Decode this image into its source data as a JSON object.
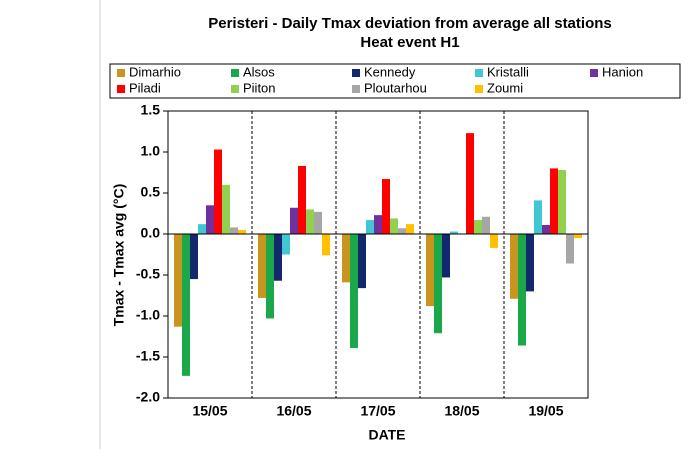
{
  "chart_data": {
    "type": "bar",
    "title": "Peristeri - Daily Tmax deviation from average all stations",
    "subtitle": "Heat event H1",
    "x_label": "DATE",
    "y_label": "Tmax - Tmax avg (°C)",
    "categories": [
      "15/05",
      "16/05",
      "17/05",
      "18/05",
      "19/05"
    ],
    "series": [
      {
        "name": "Dimarhio",
        "color": "#c8961e",
        "values": [
          -1.13,
          -0.78,
          -0.59,
          -0.88,
          -0.79
        ]
      },
      {
        "name": "Alsos",
        "color": "#1aa84a",
        "values": [
          -1.73,
          -1.03,
          -1.39,
          -1.21,
          -1.36
        ]
      },
      {
        "name": "Kennedy",
        "color": "#14286e",
        "values": [
          -0.55,
          -0.57,
          -0.66,
          -0.53,
          -0.7
        ]
      },
      {
        "name": "Kristalli",
        "color": "#3fc8d2",
        "values": [
          0.12,
          -0.25,
          0.17,
          0.03,
          0.41
        ]
      },
      {
        "name": "Hanion",
        "color": "#7030a0",
        "values": [
          0.35,
          0.32,
          0.23,
          0,
          0.11
        ]
      },
      {
        "name": "Piladi",
        "color": "#ff0000",
        "values": [
          1.03,
          0.83,
          0.67,
          1.23,
          0.8
        ]
      },
      {
        "name": "Piiton",
        "color": "#92d050",
        "values": [
          0.6,
          0.3,
          0.19,
          0.17,
          0.78
        ]
      },
      {
        "name": "Ploutarhou",
        "color": "#a6a6a6",
        "values": [
          0.08,
          0.27,
          0.07,
          0.21,
          -0.36
        ]
      },
      {
        "name": "Zoumi",
        "color": "#ffc000",
        "values": [
          0.05,
          -0.26,
          0.12,
          -0.17,
          -0.05
        ]
      }
    ],
    "ylim": [
      -2,
      1.5
    ],
    "yticks": [
      1.5,
      {
        "value": 1,
        "label": "1.0"
      },
      0.5,
      {
        "value": 0,
        "label": "0.0"
      },
      -0.5,
      {
        "value": -1,
        "label": "-1.0"
      },
      -1.5,
      {
        "value": -2,
        "label": "-2.0"
      }
    ],
    "grid": true,
    "legend": "top"
  }
}
